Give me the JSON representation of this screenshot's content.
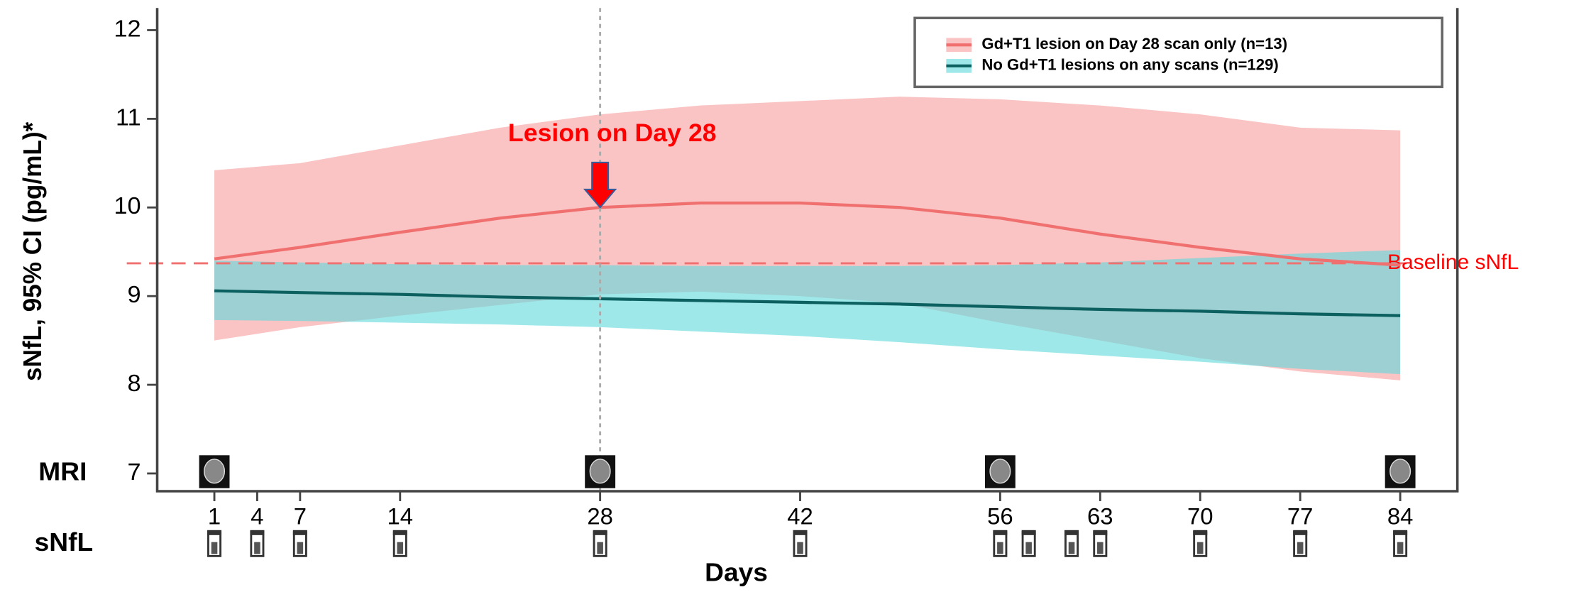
{
  "chart_data": {
    "type": "line",
    "y_label": "sNfL, 95% CI (pg/mL)*",
    "x_label": "Days",
    "x": [
      1,
      7,
      14,
      21,
      28,
      35,
      42,
      49,
      56,
      63,
      70,
      77,
      84
    ],
    "series": [
      {
        "name": "Gd+T1 lesion on Day 28 scan only (n=13)",
        "color": "#f07070",
        "band_color": "#f9c4c3",
        "band_opacity": 1,
        "values": [
          9.42,
          9.55,
          9.72,
          9.88,
          10.0,
          10.05,
          10.05,
          10.0,
          9.88,
          9.7,
          9.55,
          9.42,
          9.35
        ],
        "upper": [
          10.42,
          10.5,
          10.7,
          10.9,
          11.05,
          11.15,
          11.2,
          11.25,
          11.22,
          11.15,
          11.05,
          10.9,
          10.87
        ],
        "lower": [
          8.5,
          8.65,
          8.78,
          8.9,
          9.02,
          9.05,
          9.0,
          8.92,
          8.7,
          8.5,
          8.3,
          8.15,
          8.05
        ]
      },
      {
        "name": "No Gd+T1 lesions on any scans (n=129)",
        "color": "#0d6060",
        "band_color": "#5fd8dc",
        "band_opacity": 0.6,
        "values": [
          9.06,
          9.04,
          9.02,
          8.99,
          8.97,
          8.95,
          8.93,
          8.91,
          8.88,
          8.85,
          8.83,
          8.8,
          8.78
        ],
        "upper": [
          9.4,
          9.38,
          9.36,
          9.35,
          9.35,
          9.34,
          9.34,
          9.34,
          9.35,
          9.38,
          9.43,
          9.48,
          9.52
        ],
        "lower": [
          8.73,
          8.72,
          8.7,
          8.68,
          8.65,
          8.6,
          8.55,
          8.48,
          8.4,
          8.33,
          8.26,
          8.18,
          8.12
        ]
      }
    ],
    "xlim": [
      -3,
      88
    ],
    "ylim": [
      6.8,
      12.25
    ],
    "xticks": [
      1,
      4,
      7,
      14,
      28,
      42,
      56,
      63,
      70,
      77,
      84
    ],
    "yticks": [
      7,
      8,
      9,
      10,
      11,
      12
    ],
    "baseline": {
      "value": 9.37,
      "label": "Baseline sNfL",
      "color": "#f07070"
    },
    "annotation": {
      "text": "Lesion on Day 28",
      "x": 28,
      "y": 10,
      "color": "#ff0000"
    },
    "vline_x": 28,
    "mri": {
      "label": "MRI",
      "days": [
        1,
        28,
        56,
        84
      ]
    },
    "snfl": {
      "label": "sNfL",
      "days": [
        1,
        4,
        7,
        14,
        28,
        42,
        56,
        58,
        61,
        63,
        70,
        77,
        84
      ]
    }
  }
}
